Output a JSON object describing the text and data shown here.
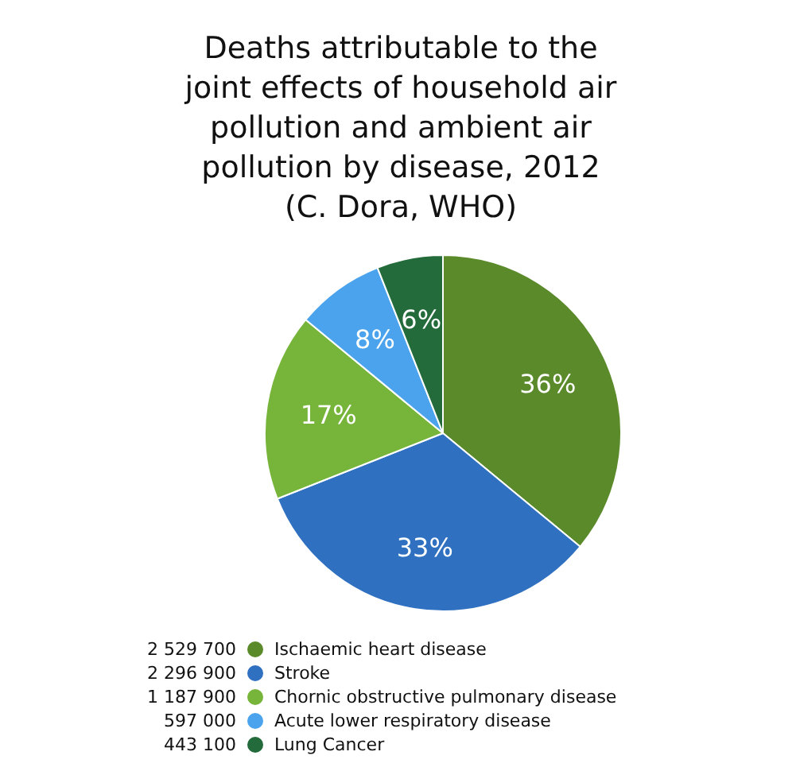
{
  "chart_data": {
    "type": "pie",
    "title": "Deaths attributable to the\njoint effects of household air\npollution and ambient air\npollution by disease, 2012",
    "subtitle": "(C. Dora, WHO)",
    "categories": [
      "Ischaemic heart disease",
      "Stroke",
      "Chornic obstructive pulmonary disease",
      "Acute lower respiratory disease",
      "Lung Cancer"
    ],
    "values": [
      36,
      33,
      17,
      8,
      6
    ],
    "value_labels": [
      "36%",
      "33%",
      "17%",
      "8%",
      "6%"
    ],
    "annotations": [
      "2 529 700",
      "2 296 900",
      "1 187 900",
      "597 000",
      "443 100"
    ],
    "colors": [
      "#5b8a2b",
      "#2f70c0",
      "#76b43a",
      "#4ba3ee",
      "#236b3a"
    ],
    "legend": "bottom left"
  }
}
